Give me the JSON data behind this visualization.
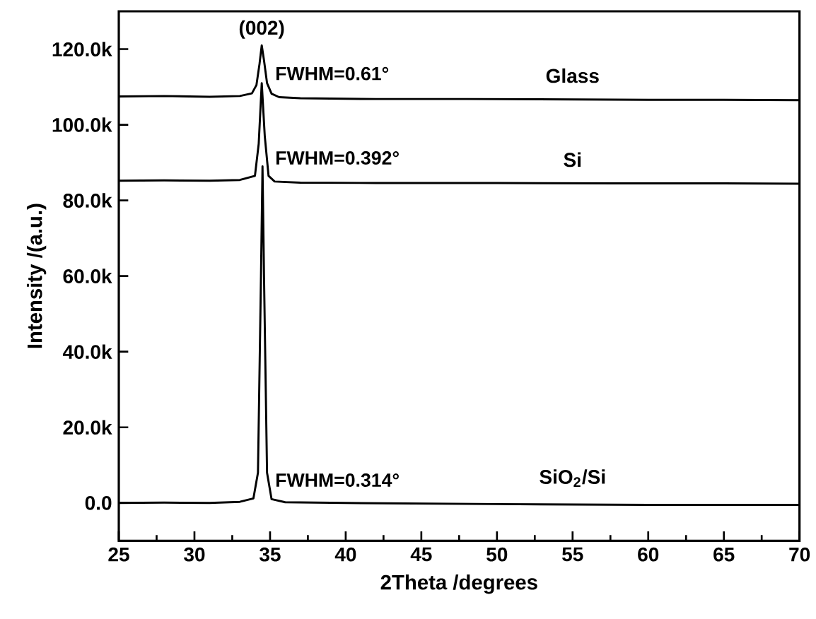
{
  "chart_data": {
    "type": "line",
    "xlabel": "2Theta /degrees",
    "ylabel": "Intensity /(a.u.)",
    "xlim": [
      25,
      70
    ],
    "xticks": [
      25,
      30,
      35,
      40,
      45,
      50,
      55,
      60,
      65,
      70
    ],
    "ylim": [
      -10000,
      130000
    ],
    "yticks": [
      {
        "value": 0,
        "label": "0.0"
      },
      {
        "value": 20000,
        "label": "20.0k"
      },
      {
        "value": 40000,
        "label": "40.0k"
      },
      {
        "value": 60000,
        "label": "60.0k"
      },
      {
        "value": 80000,
        "label": "80.0k"
      },
      {
        "value": 100000,
        "label": "100.0k"
      },
      {
        "value": 120000,
        "label": "120.0k"
      }
    ],
    "series": [
      {
        "name": "Glass",
        "color": "#000000",
        "x": [
          25,
          28,
          31,
          33,
          33.8,
          34.1,
          34.3,
          34.45,
          34.6,
          34.8,
          35.1,
          35.6,
          37,
          42,
          48,
          54,
          60,
          65,
          70
        ],
        "values": [
          107500,
          107600,
          107400,
          107600,
          108300,
          110500,
          116000,
          121000,
          117000,
          111000,
          108200,
          107300,
          107000,
          106800,
          106800,
          106700,
          106600,
          106600,
          106500
        ]
      },
      {
        "name": "Si",
        "color": "#000000",
        "x": [
          25,
          28,
          31,
          33,
          34.0,
          34.25,
          34.45,
          34.65,
          34.9,
          35.3,
          37,
          42,
          50,
          58,
          65,
          70
        ],
        "values": [
          85200,
          85300,
          85200,
          85400,
          86500,
          95000,
          111000,
          97000,
          86500,
          85000,
          84700,
          84600,
          84600,
          84500,
          84500,
          84400
        ]
      },
      {
        "name": "SiO$_{2}$/Si",
        "color": "#000000",
        "x": [
          25,
          28,
          31,
          33,
          33.9,
          34.2,
          34.4,
          34.5,
          34.6,
          34.8,
          35.1,
          36,
          40,
          50,
          60,
          70
        ],
        "values": [
          0,
          100,
          0,
          300,
          1200,
          8000,
          60000,
          89000,
          60000,
          8000,
          1000,
          200,
          0,
          -300,
          -500,
          -500
        ]
      }
    ],
    "annotations": [
      "(002)",
      "FWHM=0.61°",
      "FWHM=0.392°",
      "FWHM=0.314°"
    ]
  }
}
